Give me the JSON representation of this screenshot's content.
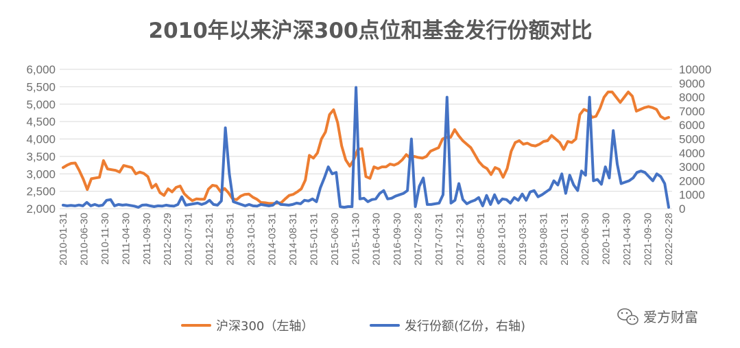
{
  "chart_data": {
    "type": "line",
    "title": "2010年以来沪深300点位和基金发行份额对比",
    "xlabel": "",
    "ylabel": "",
    "y_left_ticks": [
      "6,000",
      "5,500",
      "5,000",
      "4,500",
      "4,000",
      "3,500",
      "3,000",
      "2,500",
      "2,000"
    ],
    "y_right_ticks": [
      "10000",
      "9000",
      "8000",
      "7000",
      "6000",
      "5000",
      "4000",
      "3000",
      "2000",
      "1000",
      "0"
    ],
    "ylim_left": [
      2000,
      6000
    ],
    "ylim_right": [
      0,
      10000
    ],
    "x_tick_labels": [
      "2010-01-31",
      "2010-06-30",
      "2010-11-30",
      "2011-04-30",
      "2011-09-30",
      "2012-02-29",
      "2012-07-31",
      "2012-12-31",
      "2013-05-31",
      "2013-10-31",
      "2014-03-31",
      "2014-08-31",
      "2015-01-31",
      "2015-06-30",
      "2015-11-30",
      "2016-04-30",
      "2016-09-30",
      "2017-02-28",
      "2017-07-31",
      "2017-12-31",
      "2018-05-31",
      "2018-10-31",
      "2019-03-31",
      "2019-08-31",
      "2020-01-31",
      "2020-06-30",
      "2020-11-30",
      "2021-04-30",
      "2021-09-30",
      "2022-02-28"
    ],
    "grid": true,
    "legend_position": "bottom",
    "series": [
      {
        "name": "沪深300（左轴）",
        "axis": "left",
        "color": "#ed7d31",
        "values": [
          3180,
          3250,
          3300,
          3310,
          3100,
          2850,
          2550,
          2860,
          2880,
          2900,
          3380,
          3140,
          3120,
          3100,
          3050,
          3240,
          3210,
          3180,
          3000,
          3050,
          3010,
          2920,
          2600,
          2700,
          2460,
          2380,
          2570,
          2480,
          2610,
          2650,
          2430,
          2320,
          2230,
          2280,
          2270,
          2270,
          2560,
          2670,
          2650,
          2490,
          2580,
          2450,
          2280,
          2260,
          2360,
          2410,
          2420,
          2330,
          2270,
          2180,
          2170,
          2150,
          2150,
          2160,
          2170,
          2280,
          2380,
          2410,
          2480,
          2570,
          2820,
          3530,
          3450,
          3600,
          4000,
          4200,
          4700,
          4840,
          4470,
          3800,
          3400,
          3220,
          3400,
          3700,
          3720,
          2920,
          2870,
          3200,
          3150,
          3200,
          3200,
          3280,
          3250,
          3300,
          3400,
          3550,
          3450,
          3500,
          3470,
          3450,
          3500,
          3650,
          3700,
          3750,
          4000,
          4050,
          4050,
          4270,
          4090,
          3950,
          3850,
          3750,
          3550,
          3350,
          3220,
          3150,
          2980,
          3180,
          3130,
          2900,
          3150,
          3650,
          3900,
          3950,
          3850,
          3880,
          3820,
          3800,
          3850,
          3930,
          3950,
          4100,
          4000,
          3900,
          3700,
          3930,
          3900,
          4000,
          4700,
          4850,
          4800,
          4620,
          4650,
          4880,
          5200,
          5350,
          5350,
          5200,
          5050,
          5200,
          5350,
          5230,
          4800,
          4850,
          4900,
          4930,
          4900,
          4850,
          4650,
          4580,
          4620
        ]
      },
      {
        "name": "发行份额(亿份，右轴)",
        "axis": "right",
        "color": "#4472c4",
        "values": [
          250,
          200,
          230,
          200,
          260,
          200,
          450,
          200,
          300,
          200,
          250,
          600,
          650,
          200,
          300,
          250,
          280,
          230,
          180,
          100,
          250,
          270,
          200,
          150,
          200,
          180,
          250,
          200,
          180,
          300,
          850,
          250,
          300,
          350,
          400,
          300,
          400,
          600,
          300,
          250,
          550,
          5800,
          2500,
          500,
          400,
          300,
          200,
          300,
          200,
          180,
          300,
          250,
          200,
          250,
          500,
          300,
          280,
          250,
          300,
          400,
          350,
          600,
          550,
          700,
          500,
          1500,
          2200,
          3000,
          2500,
          2600,
          150,
          100,
          150,
          150,
          8700,
          700,
          750,
          500,
          650,
          700,
          1100,
          1300,
          700,
          750,
          900,
          1000,
          1100,
          1300,
          5000,
          150,
          1600,
          2200,
          300,
          300,
          350,
          400,
          1000,
          8000,
          400,
          600,
          1800,
          650,
          350,
          500,
          600,
          800,
          200,
          950,
          300,
          1000,
          400,
          700,
          650,
          400,
          800,
          600,
          1050,
          600,
          1200,
          1300,
          850,
          1000,
          1200,
          1400,
          2000,
          1700,
          2500,
          1100,
          2400,
          1700,
          1300,
          2700,
          2400,
          8000,
          2000,
          2100,
          1750,
          3000,
          2200,
          5600,
          3200,
          1800,
          1900,
          2000,
          2200,
          2600,
          2700,
          2600,
          2300,
          2000,
          2500,
          2300,
          1800,
          100
        ]
      }
    ]
  },
  "watermark": {
    "icon": "wechat-icon",
    "text": "爱方财富"
  }
}
